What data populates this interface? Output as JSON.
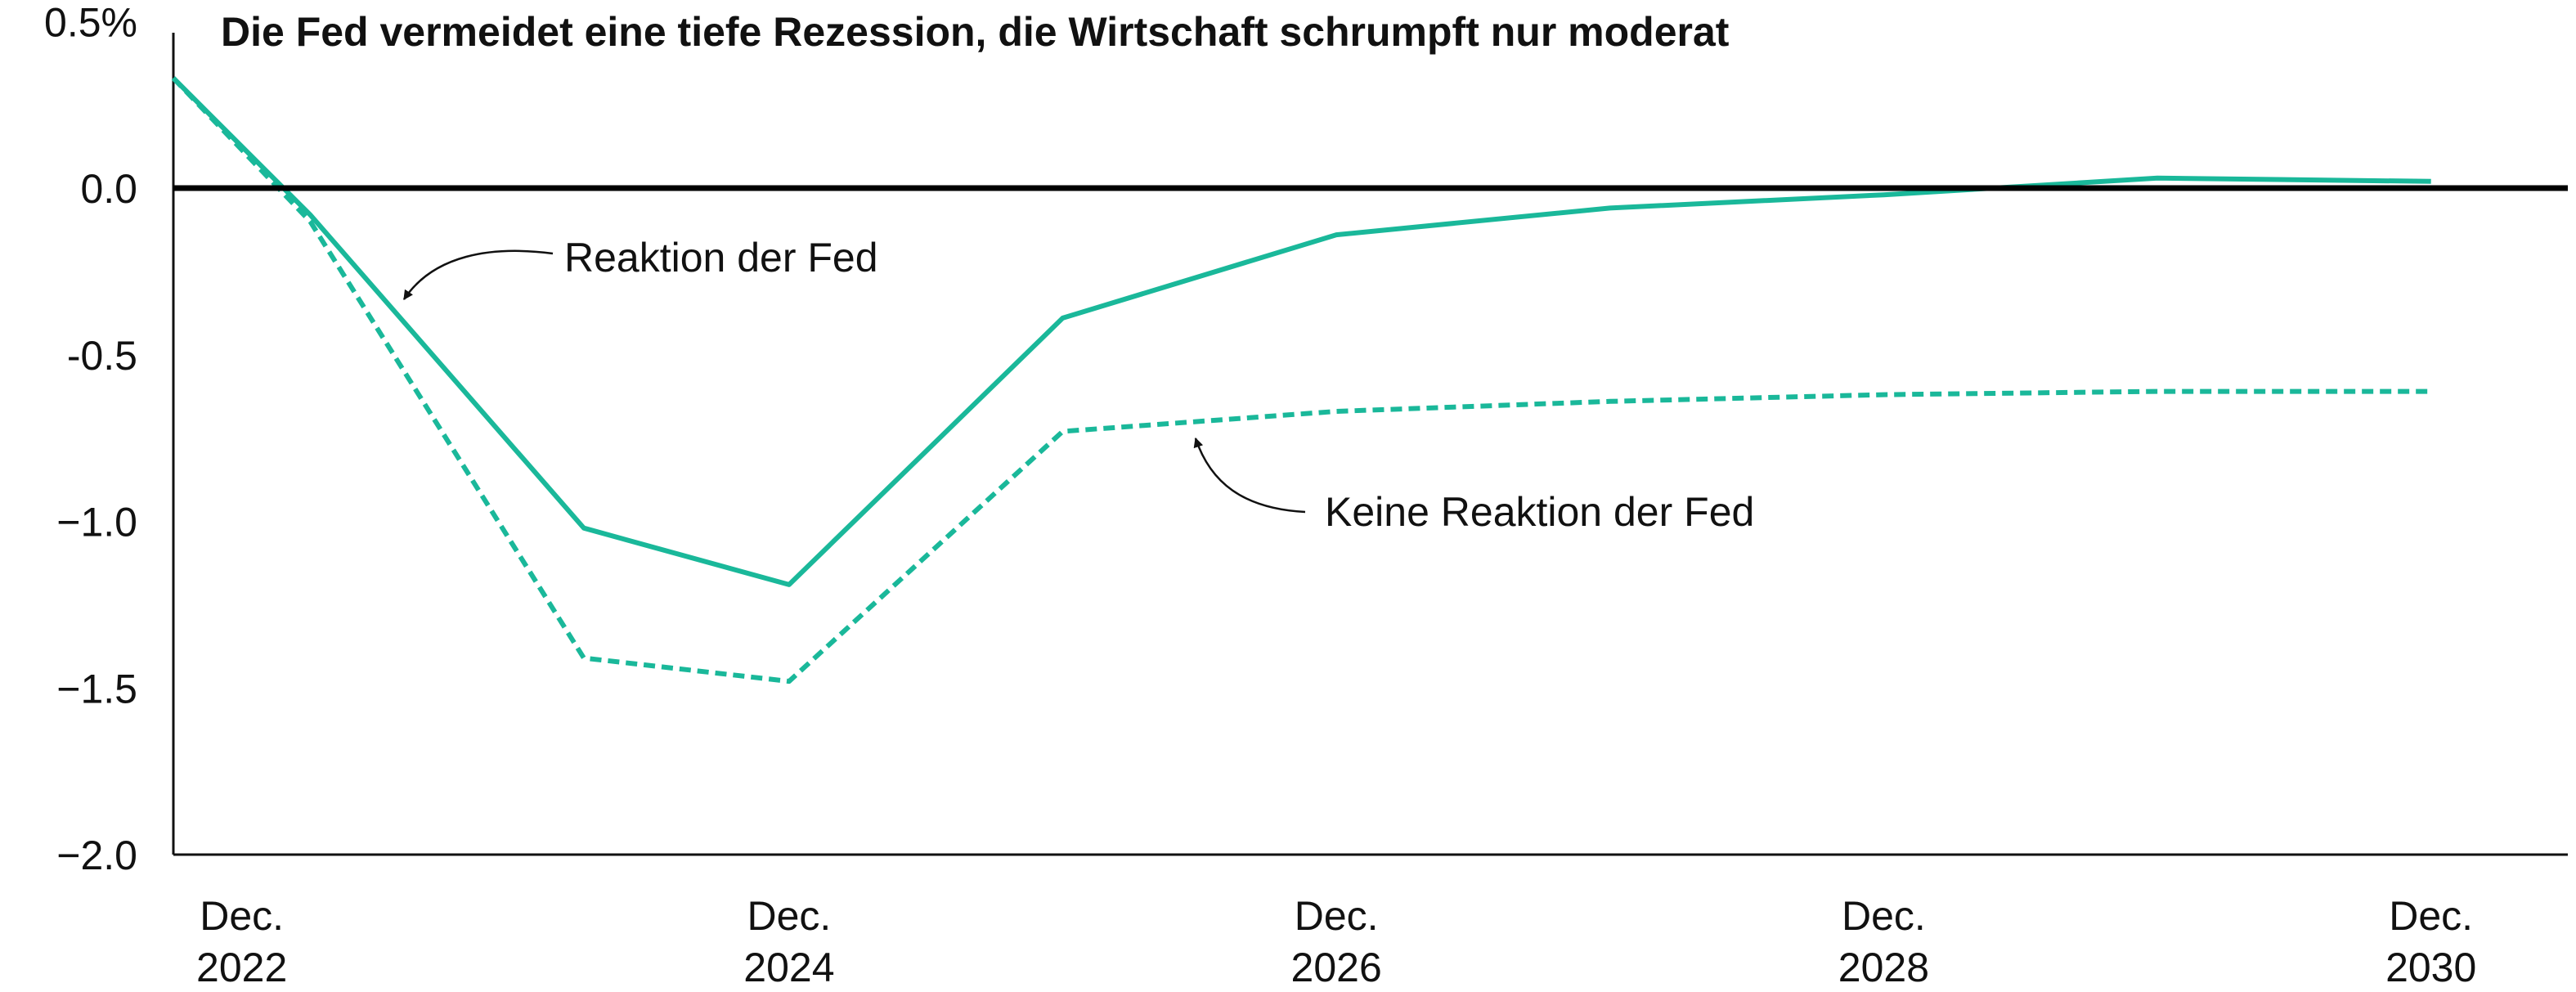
{
  "chart_data": {
    "type": "line",
    "title": "Die Fed vermeidet eine tiefe Rezession, die Wirtschaft schrumpft nur moderat",
    "ylim": [
      -2.0,
      0.5
    ],
    "yticks": [
      {
        "value": 0.5,
        "label": "0.5%"
      },
      {
        "value": 0.0,
        "label": "0.0"
      },
      {
        "value": -0.5,
        "label": "-0.5"
      },
      {
        "value": -1.0,
        "label": "−1.0"
      },
      {
        "value": -1.5,
        "label": "−1.5"
      },
      {
        "value": -2.0,
        "label": "−2.0"
      }
    ],
    "xlim": [
      "2022-09",
      "2031-06"
    ],
    "xticks": [
      {
        "date": "2022-12",
        "line1": "Dec.",
        "line2": "2022"
      },
      {
        "date": "2024-12",
        "line1": "Dec.",
        "line2": "2024"
      },
      {
        "date": "2026-12",
        "line1": "Dec.",
        "line2": "2026"
      },
      {
        "date": "2028-12",
        "line1": "Dec.",
        "line2": "2028"
      },
      {
        "date": "2030-12",
        "line1": "Dec.",
        "line2": "2030"
      }
    ],
    "reference_line": {
      "value": 0.0,
      "color": "#000000"
    },
    "series_color": "#1ab89a",
    "series": [
      {
        "name": "Reaktion der Fed",
        "style": "solid",
        "x": [
          "2022-09",
          "2023-03",
          "2024-03",
          "2024-12",
          "2025-12",
          "2026-12",
          "2027-12",
          "2028-12",
          "2029-12",
          "2030-12"
        ],
        "y": [
          0.33,
          -0.08,
          -1.02,
          -1.19,
          -0.39,
          -0.14,
          -0.06,
          -0.02,
          0.03,
          0.02
        ]
      },
      {
        "name": "Keine Reaktion der Fed",
        "style": "dashed",
        "x": [
          "2022-09",
          "2023-03",
          "2024-03",
          "2024-12",
          "2025-12",
          "2026-12",
          "2027-12",
          "2028-12",
          "2029-12",
          "2030-12"
        ],
        "y": [
          0.33,
          -0.1,
          -1.41,
          -1.48,
          -0.73,
          -0.67,
          -0.64,
          -0.62,
          -0.61,
          -0.61
        ]
      }
    ],
    "annotations": [
      {
        "text": "Reaktion der Fed",
        "series": 0
      },
      {
        "text": "Keine Reaktion der Fed",
        "series": 1
      }
    ]
  }
}
